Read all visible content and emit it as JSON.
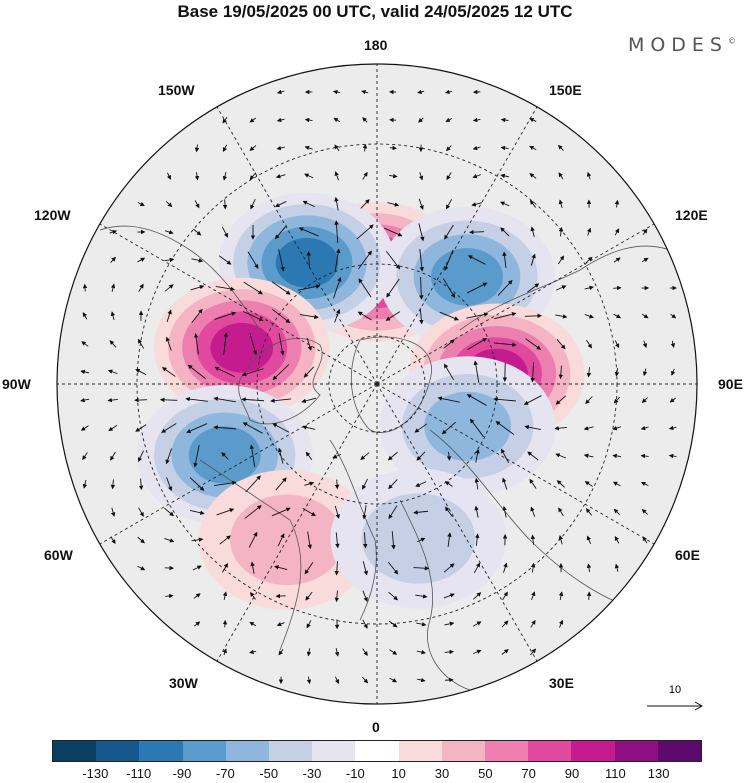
{
  "title": "Base 19/05/2025 00 UTC, valid 24/05/2025 12 UTC",
  "brand": "MODES",
  "brand_mark": "©",
  "longitude_labels": {
    "top": "180",
    "bottom": "0",
    "left": "90W",
    "right": "90E",
    "upper_left_1": "150W",
    "upper_left_2": "120W",
    "upper_right_1": "150E",
    "upper_right_2": "120E",
    "lower_left_1": "60W",
    "lower_left_2": "30W",
    "lower_right_1": "60E",
    "lower_right_2": "30E"
  },
  "vector_scale_label": "10",
  "colorbar": {
    "colors": [
      "#0b3e63",
      "#15598c",
      "#2c78b3",
      "#5a9bcb",
      "#8fb6dc",
      "#c5cfe6",
      "#e6e4f1",
      "#ffffff",
      "#fadbdb",
      "#f5b4c3",
      "#ec7fb0",
      "#e0499e",
      "#c41c8e",
      "#8f0f80",
      "#5d0a6e"
    ],
    "tick_labels": [
      "-130",
      "-110",
      "-90",
      "-70",
      "-50",
      "-30",
      "-10",
      "10",
      "30",
      "50",
      "70",
      "90",
      "110",
      "130"
    ]
  },
  "anomaly_centers": [
    {
      "name": "pacific-high",
      "lon": 180,
      "lat": 62,
      "value": 100
    },
    {
      "name": "north-pacific-low",
      "lon": -150,
      "lat": 55,
      "value": -100
    },
    {
      "name": "canada-high",
      "lon": -105,
      "lat": 55,
      "value": 105
    },
    {
      "name": "north-atlantic-low",
      "lon": -65,
      "lat": 48,
      "value": -90
    },
    {
      "name": "atlantic-ridge",
      "lon": -30,
      "lat": 45,
      "value": 45
    },
    {
      "name": "east-siberia-low",
      "lon": 140,
      "lat": 55,
      "value": -80
    },
    {
      "name": "central-siberia-high",
      "lon": 95,
      "lat": 60,
      "value": 100
    },
    {
      "name": "western-siberia-low",
      "lon": 65,
      "lat": 65,
      "value": -60
    },
    {
      "name": "europe-low",
      "lon": 15,
      "lat": 50,
      "value": -40
    }
  ]
}
